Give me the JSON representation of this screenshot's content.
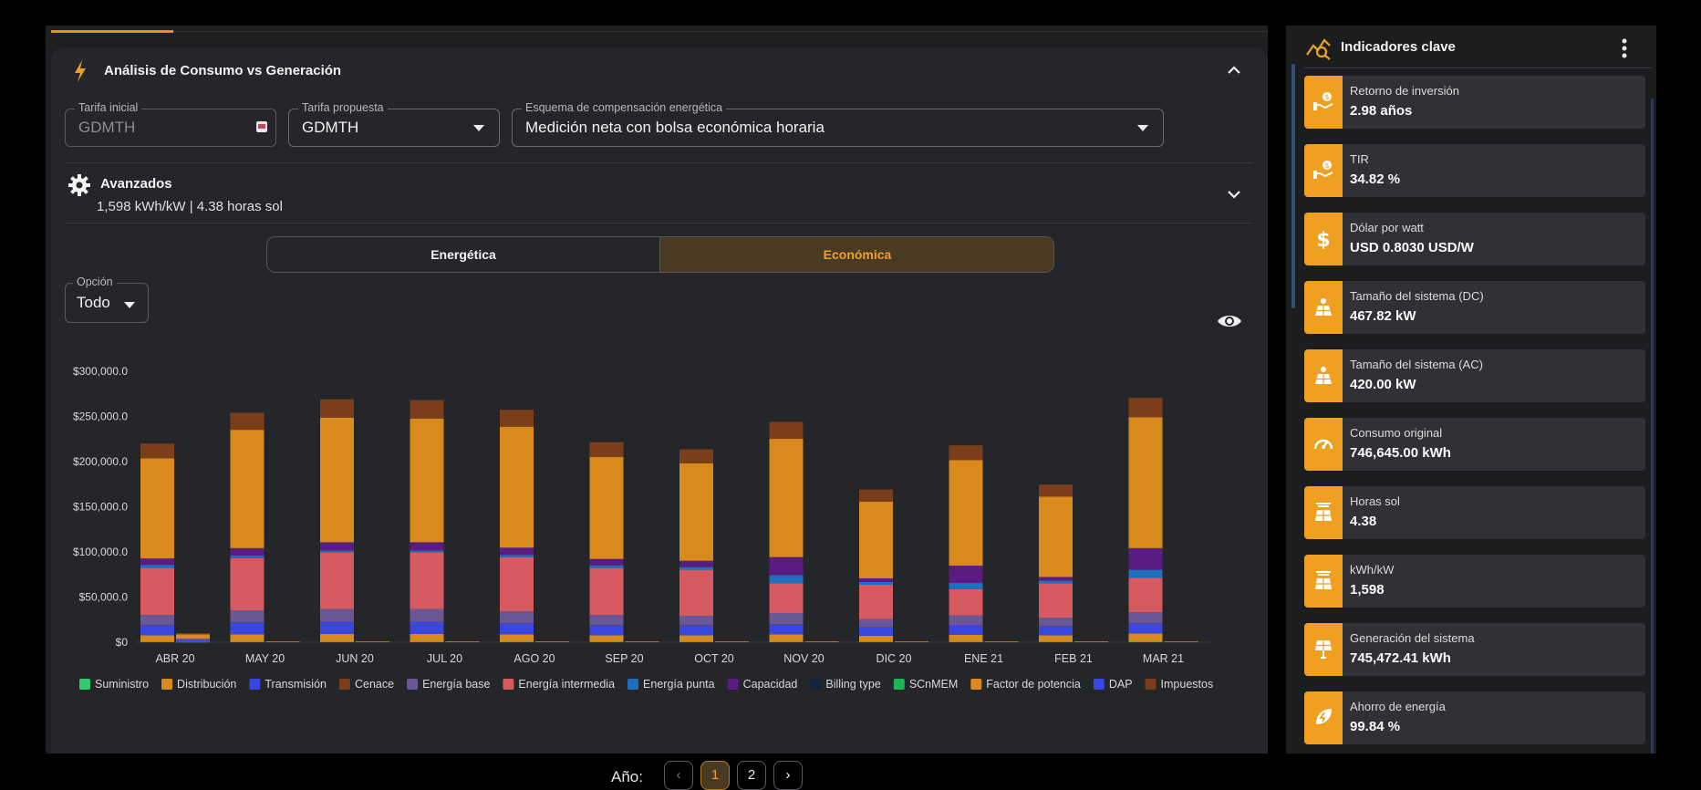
{
  "header": {
    "title": "Análisis de Consumo vs Generación"
  },
  "fields": {
    "tarifa_inicial": {
      "label": "Tarifa inicial",
      "value": "GDMTH"
    },
    "tarifa_propuesta": {
      "label": "Tarifa propuesta",
      "value": "GDMTH"
    },
    "esquema": {
      "label": "Esquema de compensación energética",
      "value": "Medición neta con bolsa económica horaria"
    }
  },
  "advanced": {
    "title": "Avanzados",
    "subtitle": "1,598 kWh/kW | 4.38 horas sol"
  },
  "segment": {
    "options": [
      "Energética",
      "Económica"
    ],
    "selected": "Económica"
  },
  "option_select": {
    "label": "Opción",
    "value": "Todo"
  },
  "pager": {
    "label": "Año:",
    "pages": [
      "1",
      "2"
    ],
    "current": "1"
  },
  "colors": {
    "accent": "#f0a020",
    "Suministro": "#2ecc71",
    "Distribución": "#d98a1c",
    "Transmisión": "#3a46e0",
    "Cenace": "#7a3f1a",
    "Energía base": "#6a5896",
    "Energía intermedia": "#d65a5f",
    "Energía punta": "#1f6fbf",
    "Capacidad": "#5a1c82",
    "Billing type": "#0f2540",
    "SCnMEM": "#22b35a",
    "Factor de potencia": "#d98a1c",
    "DAP": "#3a46e0",
    "Impuestos": "#7a3f1a"
  },
  "chart_data": {
    "type": "bar",
    "stacked": true,
    "categories": [
      "ABR 20",
      "MAY 20",
      "JUN 20",
      "JUL 20",
      "AGO 20",
      "SEP 20",
      "OCT 20",
      "NOV 20",
      "DIC 20",
      "ENE 21",
      "FEB 21",
      "MAR 21"
    ],
    "ylim": [
      0,
      300000
    ],
    "yticks": [
      "$0",
      "$50,000.0",
      "$100,000.0",
      "$150,000.0",
      "$200,000.0",
      "$250,000.0",
      "$300,000.0"
    ],
    "legend": [
      "Suministro",
      "Distribución",
      "Transmisión",
      "Cenace",
      "Energía base",
      "Energía intermedia",
      "Energía punta",
      "Capacidad",
      "Billing type",
      "SCnMEM",
      "Factor de potencia",
      "DAP",
      "Impuestos"
    ],
    "legend_position": "bottom",
    "series_original": [
      {
        "name": "Suministro",
        "values": [
          700,
          700,
          700,
          700,
          700,
          700,
          700,
          700,
          700,
          700,
          700,
          700
        ]
      },
      {
        "name": "Distribución",
        "values": [
          7000,
          8000,
          8500,
          8500,
          8000,
          7000,
          7000,
          8000,
          6500,
          7500,
          7000,
          9000
        ]
      },
      {
        "name": "Transmisión",
        "values": [
          11000,
          13000,
          13000,
          13000,
          12000,
          11000,
          11000,
          11000,
          9000,
          10000,
          10000,
          11000
        ]
      },
      {
        "name": "Cenace",
        "values": [
          500,
          500,
          500,
          500,
          500,
          500,
          500,
          500,
          500,
          500,
          500,
          500
        ]
      },
      {
        "name": "Energía base",
        "values": [
          11000,
          13000,
          14000,
          14000,
          13000,
          11000,
          10000,
          12000,
          9000,
          11000,
          9000,
          12000
        ]
      },
      {
        "name": "Energía intermedia",
        "values": [
          52000,
          58000,
          63000,
          63000,
          60000,
          52000,
          51000,
          33000,
          38000,
          29000,
          38000,
          38000
        ]
      },
      {
        "name": "Energía punta",
        "values": [
          3500,
          3000,
          2000,
          2000,
          2500,
          3000,
          3000,
          9000,
          3000,
          7000,
          3000,
          9000
        ]
      },
      {
        "name": "Capacidad",
        "values": [
          7000,
          8000,
          9000,
          9000,
          8000,
          7000,
          7000,
          20000,
          4000,
          19000,
          4000,
          24000
        ]
      },
      {
        "name": "Billing type",
        "values": [
          0,
          0,
          0,
          0,
          0,
          0,
          0,
          0,
          0,
          0,
          0,
          0
        ]
      },
      {
        "name": "SCnMEM",
        "values": [
          0,
          0,
          0,
          0,
          0,
          0,
          0,
          0,
          0,
          0,
          0,
          0
        ]
      },
      {
        "name": "Factor de potencia",
        "values": [
          111000,
          131000,
          138000,
          137000,
          134000,
          113000,
          108000,
          131000,
          85000,
          117000,
          89000,
          145000
        ]
      },
      {
        "name": "DAP",
        "values": [
          0,
          0,
          0,
          0,
          0,
          0,
          0,
          0,
          0,
          0,
          0,
          0
        ]
      },
      {
        "name": "Impuestos",
        "values": [
          16300,
          18800,
          20300,
          20300,
          18800,
          16300,
          15300,
          18800,
          13300,
          16300,
          13300,
          21300
        ]
      }
    ],
    "series_proposed": [
      {
        "name": "Suministro",
        "values": [
          300,
          0,
          0,
          0,
          0,
          0,
          0,
          0,
          0,
          0,
          0,
          0
        ]
      },
      {
        "name": "Transmisión",
        "values": [
          2000,
          0,
          0,
          0,
          0,
          0,
          0,
          0,
          0,
          0,
          0,
          0
        ]
      },
      {
        "name": "Energía base",
        "values": [
          1500,
          0,
          0,
          0,
          0,
          0,
          0,
          0,
          0,
          0,
          0,
          0
        ]
      },
      {
        "name": "Factor de potencia",
        "values": [
          5000,
          800,
          800,
          800,
          800,
          800,
          800,
          800,
          800,
          800,
          800,
          800
        ]
      },
      {
        "name": "Impuestos",
        "values": [
          1200,
          0,
          0,
          0,
          0,
          0,
          0,
          0,
          0,
          0,
          0,
          0
        ]
      }
    ]
  },
  "kpis": {
    "title": "Indicadores clave",
    "items": [
      {
        "label": "Retorno de inversión",
        "value": "2.98 años",
        "icon": "hand-coin-icon"
      },
      {
        "label": "TIR",
        "value": "34.82 %",
        "icon": "hand-coin-icon"
      },
      {
        "label": "Dólar por watt",
        "value": "USD 0.8030 USD/W",
        "icon": "dollar-icon"
      },
      {
        "label": "Tamaño del sistema (DC)",
        "value": "467.82 kW",
        "icon": "solar-panel-icon"
      },
      {
        "label": "Tamaño del sistema (AC)",
        "value": "420.00 kW",
        "icon": "solar-panel-icon"
      },
      {
        "label": "Consumo original",
        "value": "746,645.00 kWh",
        "icon": "gauge-icon"
      },
      {
        "label": "Horas sol",
        "value": "4.38",
        "icon": "sun-panel-icon"
      },
      {
        "label": "kWh/kW",
        "value": "1,598",
        "icon": "sun-panel-icon"
      },
      {
        "label": "Generación del sistema",
        "value": "745,472.41 kWh",
        "icon": "panel-plug-icon"
      },
      {
        "label": "Ahorro de energía",
        "value": "99.84 %",
        "icon": "energy-leaf-icon"
      }
    ]
  }
}
